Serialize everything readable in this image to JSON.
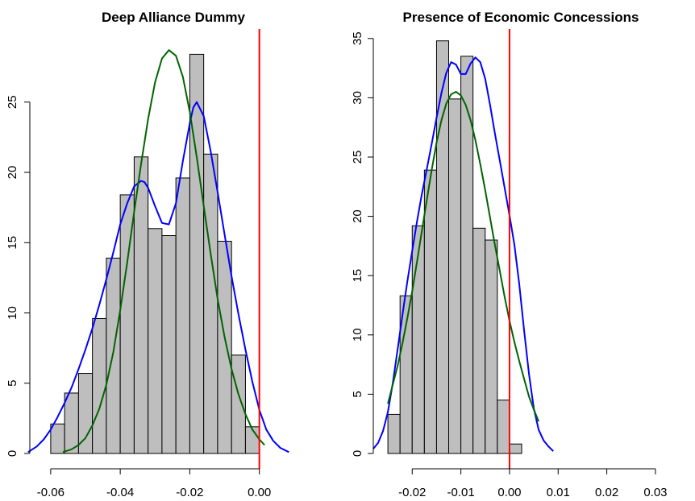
{
  "colors": {
    "bar_fill": "#bebebe",
    "bar_stroke": "#000000",
    "curve_blue": "#0000ff",
    "curve_green": "#006400",
    "reference_line": "#ff0000"
  },
  "chart_data": [
    {
      "type": "bar",
      "title": "Deep Alliance Dummy",
      "xlim": [
        -0.066,
        0.017
      ],
      "ylim": [
        0,
        30.2
      ],
      "x_ticks": [
        -0.06,
        -0.04,
        -0.02,
        0.0
      ],
      "x_tick_labels": [
        "-0.06",
        "-0.04",
        "-0.02",
        "0.00"
      ],
      "y_ticks": [
        0,
        5,
        10,
        15,
        20,
        25
      ],
      "y_tick_labels": [
        "0",
        "5",
        "10",
        "15",
        "20",
        "25"
      ],
      "bin_width": 0.004,
      "bins": [
        {
          "x0": -0.06,
          "value": 2.1
        },
        {
          "x0": -0.056,
          "value": 4.3
        },
        {
          "x0": -0.052,
          "value": 5.7
        },
        {
          "x0": -0.048,
          "value": 9.6
        },
        {
          "x0": -0.044,
          "value": 13.9
        },
        {
          "x0": -0.04,
          "value": 18.4
        },
        {
          "x0": -0.036,
          "value": 21.1
        },
        {
          "x0": -0.032,
          "value": 16.0
        },
        {
          "x0": -0.028,
          "value": 15.5
        },
        {
          "x0": -0.024,
          "value": 19.6
        },
        {
          "x0": -0.02,
          "value": 28.4
        },
        {
          "x0": -0.016,
          "value": 21.3
        },
        {
          "x0": -0.012,
          "value": 15.1
        },
        {
          "x0": -0.008,
          "value": 7.0
        },
        {
          "x0": -0.004,
          "value": 1.9
        }
      ],
      "vline": 0.0,
      "curves": [
        {
          "color_key": "curve_blue",
          "points": [
            [
              -0.0665,
              0.1
            ],
            [
              -0.064,
              0.5
            ],
            [
              -0.062,
              1.0
            ],
            [
              -0.06,
              1.7
            ],
            [
              -0.058,
              2.6
            ],
            [
              -0.056,
              3.6
            ],
            [
              -0.054,
              4.7
            ],
            [
              -0.052,
              6.0
            ],
            [
              -0.05,
              7.4
            ],
            [
              -0.048,
              8.9
            ],
            [
              -0.046,
              10.6
            ],
            [
              -0.044,
              12.4
            ],
            [
              -0.042,
              14.3
            ],
            [
              -0.04,
              16.3
            ],
            [
              -0.038,
              17.8
            ],
            [
              -0.036,
              19.0
            ],
            [
              -0.034,
              19.4
            ],
            [
              -0.033,
              19.3
            ],
            [
              -0.032,
              18.9
            ],
            [
              -0.03,
              17.6
            ],
            [
              -0.028,
              16.4
            ],
            [
              -0.026,
              16.3
            ],
            [
              -0.024,
              17.8
            ],
            [
              -0.022,
              20.8
            ],
            [
              -0.02,
              23.5
            ],
            [
              -0.019,
              24.6
            ],
            [
              -0.018,
              25.0
            ],
            [
              -0.016,
              24.0
            ],
            [
              -0.014,
              21.5
            ],
            [
              -0.012,
              18.6
            ],
            [
              -0.01,
              15.6
            ],
            [
              -0.008,
              12.6
            ],
            [
              -0.006,
              9.9
            ],
            [
              -0.004,
              7.4
            ],
            [
              -0.002,
              5.1
            ],
            [
              0.0,
              3.1
            ],
            [
              0.002,
              1.7
            ],
            [
              0.004,
              0.9
            ],
            [
              0.006,
              0.4
            ],
            [
              0.0085,
              0.1
            ]
          ]
        },
        {
          "color_key": "curve_green",
          "points": [
            [
              -0.0565,
              0.1
            ],
            [
              -0.054,
              0.3
            ],
            [
              -0.052,
              0.6
            ],
            [
              -0.05,
              1.1
            ],
            [
              -0.048,
              2.0
            ],
            [
              -0.046,
              3.2
            ],
            [
              -0.044,
              4.9
            ],
            [
              -0.042,
              7.2
            ],
            [
              -0.04,
              10.2
            ],
            [
              -0.038,
              13.6
            ],
            [
              -0.036,
              17.2
            ],
            [
              -0.034,
              20.6
            ],
            [
              -0.032,
              23.8
            ],
            [
              -0.03,
              26.4
            ],
            [
              -0.028,
              28.1
            ],
            [
              -0.026,
              28.7
            ],
            [
              -0.024,
              28.3
            ],
            [
              -0.022,
              26.8
            ],
            [
              -0.02,
              24.3
            ],
            [
              -0.018,
              21.1
            ],
            [
              -0.016,
              17.6
            ],
            [
              -0.014,
              14.2
            ],
            [
              -0.012,
              11.0
            ],
            [
              -0.01,
              8.3
            ],
            [
              -0.008,
              6.0
            ],
            [
              -0.006,
              4.2
            ],
            [
              -0.004,
              2.8
            ],
            [
              -0.002,
              1.7
            ],
            [
              0.0,
              1.0
            ],
            [
              0.0015,
              0.6
            ]
          ]
        }
      ]
    },
    {
      "type": "bar",
      "title": "Presence of Economic Concessions",
      "xlim": [
        -0.028,
        0.032
      ],
      "ylim": [
        0,
        35.8
      ],
      "x_ticks": [
        -0.02,
        -0.01,
        0.0,
        0.01,
        0.02,
        0.03
      ],
      "x_tick_labels": [
        "-0.02",
        "-0.01",
        "0.00",
        "0.01",
        "0.02",
        "0.03"
      ],
      "y_ticks": [
        0,
        5,
        10,
        15,
        20,
        25,
        30,
        35
      ],
      "y_tick_labels": [
        "0",
        "5",
        "10",
        "15",
        "20",
        "25",
        "30",
        "35"
      ],
      "bin_width": 0.0025,
      "bins": [
        {
          "x0": -0.025,
          "value": 3.3
        },
        {
          "x0": -0.0225,
          "value": 13.3
        },
        {
          "x0": -0.02,
          "value": 19.2
        },
        {
          "x0": -0.0175,
          "value": 23.9
        },
        {
          "x0": -0.015,
          "value": 34.8
        },
        {
          "x0": -0.0125,
          "value": 29.9
        },
        {
          "x0": -0.01,
          "value": 33.5
        },
        {
          "x0": -0.0075,
          "value": 19.0
        },
        {
          "x0": -0.005,
          "value": 18.0
        },
        {
          "x0": -0.0025,
          "value": 4.5
        },
        {
          "x0": 0.0,
          "value": 0.8
        }
      ],
      "vline": 0.0,
      "curves": [
        {
          "color_key": "curve_blue",
          "points": [
            [
              -0.028,
              0.4
            ],
            [
              -0.027,
              0.9
            ],
            [
              -0.026,
              1.9
            ],
            [
              -0.025,
              3.5
            ],
            [
              -0.024,
              5.9
            ],
            [
              -0.023,
              8.8
            ],
            [
              -0.022,
              11.7
            ],
            [
              -0.021,
              14.5
            ],
            [
              -0.02,
              17.1
            ],
            [
              -0.019,
              19.6
            ],
            [
              -0.018,
              21.9
            ],
            [
              -0.017,
              24.0
            ],
            [
              -0.016,
              26.1
            ],
            [
              -0.015,
              28.3
            ],
            [
              -0.014,
              30.4
            ],
            [
              -0.013,
              32.1
            ],
            [
              -0.012,
              33.0
            ],
            [
              -0.011,
              32.8
            ],
            [
              -0.01,
              32.0
            ],
            [
              -0.009,
              32.0
            ],
            [
              -0.008,
              32.9
            ],
            [
              -0.007,
              33.4
            ],
            [
              -0.006,
              33.0
            ],
            [
              -0.005,
              31.6
            ],
            [
              -0.004,
              29.4
            ],
            [
              -0.003,
              27.0
            ],
            [
              -0.002,
              24.7
            ],
            [
              -0.001,
              22.4
            ],
            [
              0.0,
              20.1
            ],
            [
              0.001,
              17.6
            ],
            [
              0.002,
              14.3
            ],
            [
              0.003,
              10.4
            ],
            [
              0.004,
              6.7
            ],
            [
              0.005,
              3.8
            ],
            [
              0.006,
              2.0
            ],
            [
              0.007,
              1.1
            ],
            [
              0.008,
              0.6
            ],
            [
              0.009,
              0.2
            ]
          ]
        },
        {
          "color_key": "curve_green",
          "points": [
            [
              -0.025,
              4.2
            ],
            [
              -0.024,
              5.8
            ],
            [
              -0.023,
              7.4
            ],
            [
              -0.022,
              9.3
            ],
            [
              -0.021,
              11.4
            ],
            [
              -0.02,
              13.7
            ],
            [
              -0.019,
              16.2
            ],
            [
              -0.018,
              18.8
            ],
            [
              -0.017,
              21.4
            ],
            [
              -0.016,
              23.9
            ],
            [
              -0.015,
              26.2
            ],
            [
              -0.014,
              28.1
            ],
            [
              -0.013,
              29.5
            ],
            [
              -0.012,
              30.3
            ],
            [
              -0.011,
              30.5
            ],
            [
              -0.01,
              30.2
            ],
            [
              -0.009,
              29.4
            ],
            [
              -0.008,
              28.1
            ],
            [
              -0.007,
              26.4
            ],
            [
              -0.006,
              24.4
            ],
            [
              -0.005,
              22.2
            ],
            [
              -0.004,
              19.9
            ],
            [
              -0.003,
              17.6
            ],
            [
              -0.002,
              15.4
            ],
            [
              -0.001,
              13.2
            ],
            [
              0.0,
              11.2
            ],
            [
              0.001,
              9.4
            ],
            [
              0.002,
              7.8
            ],
            [
              0.003,
              6.3
            ],
            [
              0.004,
              4.8
            ],
            [
              0.005,
              3.7
            ],
            [
              0.006,
              2.7
            ]
          ]
        }
      ]
    }
  ]
}
